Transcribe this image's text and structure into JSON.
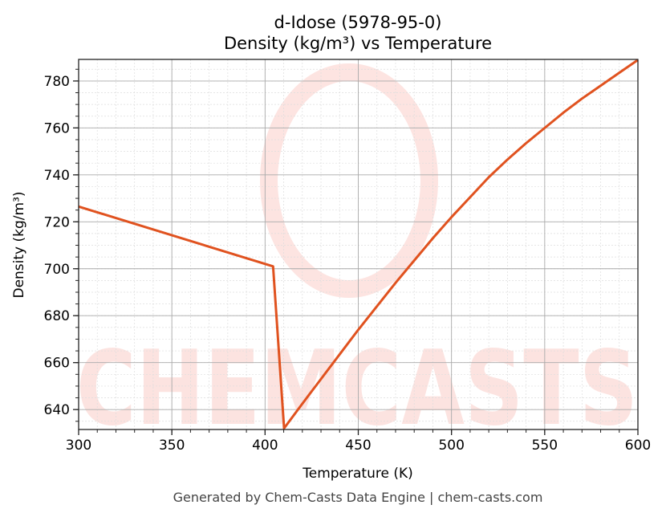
{
  "chart_data": {
    "type": "line",
    "title": "d-Idose (5978-95-0)",
    "subtitle": "Density (kg/m³) vs Temperature",
    "xlabel": "Temperature (K)",
    "ylabel": "Density (kg/m³)",
    "xlim": [
      300,
      600
    ],
    "ylim": [
      631.5,
      789.2
    ],
    "xticks": [
      300,
      350,
      400,
      450,
      500,
      550,
      600
    ],
    "yticks": [
      640,
      660,
      680,
      700,
      720,
      740,
      760,
      780
    ],
    "grid": true,
    "line_color": "#e0521f",
    "x": [
      300,
      404.3,
      410.2,
      420,
      430,
      440,
      450,
      460,
      470,
      480,
      490,
      500,
      510,
      520,
      530,
      540,
      550,
      560,
      570,
      580,
      590,
      600
    ],
    "y": [
      726.5,
      701,
      632,
      642.5,
      653,
      663.5,
      674,
      684,
      694,
      703.5,
      713,
      722,
      730.5,
      739,
      746.5,
      753.5,
      760,
      766.5,
      772.5,
      778,
      783.5,
      789
    ]
  },
  "watermark": "CHEMCASTS",
  "footer": "Generated by Chem-Casts Data Engine | chem-casts.com"
}
